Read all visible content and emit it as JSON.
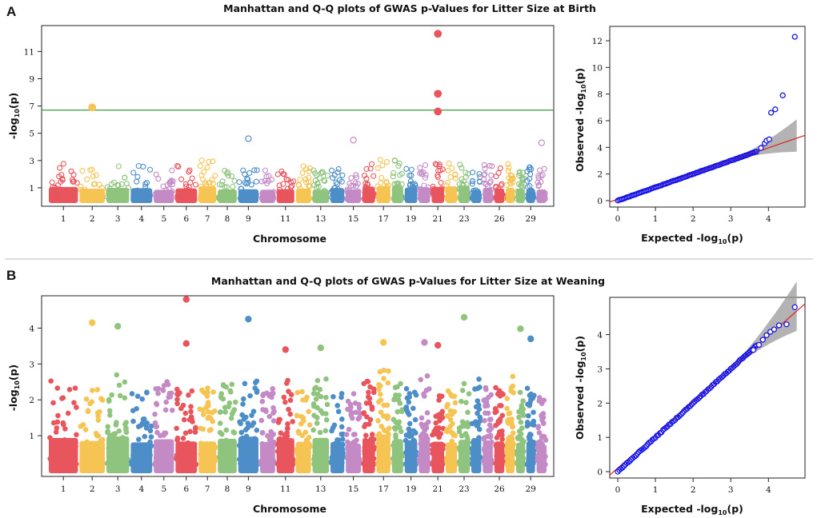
{
  "colors": {
    "chrom_palette": [
      "#e8555d",
      "#f6c452",
      "#8fc47e",
      "#4d8ec8",
      "#c38ac6"
    ],
    "threshold_line": "#3c9a3c",
    "qq_points": "#1515e8",
    "qq_line": "#e02020",
    "ci_band": "#9a9a9a",
    "divider": "#bdbdbd"
  },
  "chart_data": [
    {
      "id": "A-manhattan",
      "panel_label": "A",
      "type": "scatter",
      "title": "Manhattan and Q-Q plots of GWAS p-Values for Litter Size at Birth",
      "xlabel": "Chromosome",
      "ylabel": "-log10(p)",
      "ylabel_main": "-log",
      "ylabel_sub": "10",
      "ylabel_tail": "(p)",
      "ylim": [
        0,
        12.9
      ],
      "yticks": [
        "1",
        "3",
        "5",
        "7",
        "9",
        "11"
      ],
      "xtick_labels": [
        "1",
        "2",
        "3",
        "4",
        "5",
        "6",
        "7",
        "8",
        "9",
        "11",
        "13",
        "15",
        "17",
        "19",
        "21",
        "23",
        "26",
        "29"
      ],
      "threshold": 6.7,
      "chromosomes": 30,
      "bulk_max": 2.5,
      "highlights": [
        {
          "chrom": 2,
          "value": 6.9
        },
        {
          "chrom": 9,
          "value": 4.6
        },
        {
          "chrom": 15,
          "value": 4.5
        },
        {
          "chrom": 21,
          "value": 12.3
        },
        {
          "chrom": 21,
          "value": 7.9
        },
        {
          "chrom": 21,
          "value": 6.6
        },
        {
          "chrom": 30,
          "value": 4.3
        }
      ]
    },
    {
      "id": "A-qq",
      "type": "scatter",
      "xlabel": "Expected -log10(p)",
      "ylabel": "Observed -log10(p)",
      "xlabel_main": "Expected -log",
      "ylabel_main": "Observed -log",
      "label_sub": "10",
      "label_tail": "(p)",
      "xlim": [
        0,
        4.8
      ],
      "ylim": [
        0,
        12.6
      ],
      "xticks": [
        "0",
        "1",
        "2",
        "3",
        "4"
      ],
      "yticks": [
        "0",
        "2",
        "4",
        "6",
        "8",
        "10",
        "12"
      ],
      "points_tail": [
        [
          3.8,
          3.95
        ],
        [
          3.9,
          4.3
        ],
        [
          3.95,
          4.5
        ],
        [
          4.02,
          4.6
        ],
        [
          4.07,
          6.6
        ],
        [
          4.18,
          6.85
        ],
        [
          4.38,
          7.9
        ],
        [
          4.7,
          12.3
        ]
      ]
    },
    {
      "id": "B-manhattan",
      "panel_label": "B",
      "type": "scatter",
      "title": "Manhattan and Q-Q plots of GWAS p-Values for Litter Size at Weaning",
      "xlabel": "Chromosome",
      "ylabel": "-log10(p)",
      "ylabel_main": "-log",
      "ylabel_sub": "10",
      "ylabel_tail": "(p)",
      "ylim": [
        0,
        4.9
      ],
      "yticks": [
        "1",
        "2",
        "3",
        "4"
      ],
      "xtick_labels": [
        "1",
        "2",
        "3",
        "4",
        "5",
        "6",
        "7",
        "8",
        "9",
        "11",
        "13",
        "15",
        "17",
        "19",
        "21",
        "23",
        "26",
        "29"
      ],
      "chromosomes": 30,
      "bulk_max": 2.2,
      "highlights": [
        {
          "chrom": 6,
          "value": 4.8
        },
        {
          "chrom": 2,
          "value": 4.15
        },
        {
          "chrom": 3,
          "value": 4.05
        },
        {
          "chrom": 9,
          "value": 4.25
        },
        {
          "chrom": 23,
          "value": 4.3
        },
        {
          "chrom": 28,
          "value": 3.98
        },
        {
          "chrom": 29,
          "value": 3.7
        },
        {
          "chrom": 6,
          "value": 3.57
        },
        {
          "chrom": 17,
          "value": 3.6
        },
        {
          "chrom": 20,
          "value": 3.6
        },
        {
          "chrom": 21,
          "value": 3.52
        },
        {
          "chrom": 13,
          "value": 3.45
        },
        {
          "chrom": 11,
          "value": 3.4
        }
      ]
    },
    {
      "id": "B-qq",
      "type": "scatter",
      "xlabel": "Expected -log10(p)",
      "ylabel": "Observed -log10(p)",
      "xlabel_main": "Expected -log",
      "ylabel_main": "Observed -log",
      "label_sub": "10",
      "label_tail": "(p)",
      "xlim": [
        0,
        4.8
      ],
      "ylim": [
        0,
        4.9
      ],
      "xticks": [
        "0",
        "1",
        "2",
        "3",
        "4"
      ],
      "yticks": [
        "0",
        "1",
        "2",
        "3",
        "4"
      ],
      "points_tail": [
        [
          3.6,
          3.55
        ],
        [
          3.75,
          3.7
        ],
        [
          3.85,
          3.85
        ],
        [
          3.95,
          3.98
        ],
        [
          4.05,
          4.08
        ],
        [
          4.15,
          4.15
        ],
        [
          4.28,
          4.27
        ],
        [
          4.48,
          4.3
        ],
        [
          4.7,
          4.8
        ]
      ]
    }
  ]
}
